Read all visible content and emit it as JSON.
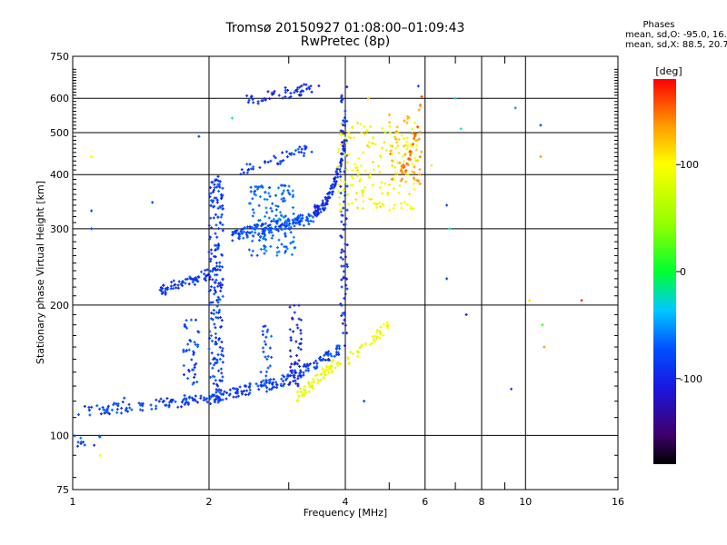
{
  "header": {
    "title_line1": "Tromsø 20150927 01:08:00–01:09:43",
    "title_line2": "RwPretec (8p)"
  },
  "phases": {
    "heading": "Phases",
    "line_o": "mean, sd,O:  -95.0, 16.4",
    "line_x": "mean, sd,X:  88.5, 20.7"
  },
  "colorbar": {
    "unit_label": "[deg]",
    "range": [
      -180,
      180
    ],
    "tick_values": [
      100,
      0,
      -100
    ],
    "tick_labels": [
      "100",
      "0",
      "-100"
    ]
  },
  "chart_data": {
    "type": "scatter",
    "title": "Tromsø 20150927 01:08:00–01:09:43",
    "subtitle": "RwPretec (8p)",
    "xlabel": "Frequency [MHz]",
    "ylabel": "Stationary phase Virtual Height [km]",
    "xscale": "log",
    "yscale": "log",
    "xlim": [
      1,
      16
    ],
    "ylim": [
      75,
      750
    ],
    "x_ticks": [
      1,
      2,
      4,
      6,
      8,
      10,
      16
    ],
    "x_tick_labels": [
      "1",
      "2",
      "4",
      "6",
      "8",
      "10",
      "16"
    ],
    "x_minor_ticks": [
      3,
      5,
      7,
      9
    ],
    "y_ticks": [
      75,
      100,
      200,
      300,
      400,
      500,
      600,
      750
    ],
    "y_tick_labels": [
      "75",
      "100",
      "200",
      "300",
      "400",
      "500",
      "600",
      "750"
    ],
    "grid": true,
    "color_scale": "phase [deg], rainbow from -180 (black) through -100 (blue), 0 (green), 100 (yellow) to 180 (red)",
    "traces": [
      {
        "name": "",
        "phase": -100,
        "x_range": [
          1.0,
          2.05
        ],
        "h_range": [
          113,
          122
        ],
        "shape": "rising",
        "n": 110
      },
      {
        "name": "",
        "phase": -102,
        "x_range": [
          2.05,
          3.0
        ],
        "h_range": [
          122,
          135
        ],
        "shape": "rising",
        "n": 90
      },
      {
        "name": "",
        "phase": -100,
        "x_range": [
          3.0,
          3.95
        ],
        "h_range": [
          135,
          160
        ],
        "shape": "rising",
        "n": 70
      },
      {
        "name": "",
        "phase": -105,
        "x_range": [
          1.55,
          2.1
        ],
        "h_range": [
          215,
          240
        ],
        "shape": "rising",
        "n": 70
      },
      {
        "name": "",
        "phase": -95,
        "x_range": [
          2.25,
          3.4
        ],
        "h_range": [
          290,
          318
        ],
        "shape": "rising",
        "n": 160
      },
      {
        "name": "",
        "phase": -108,
        "x_range": [
          3.4,
          4.0
        ],
        "h_range": [
          330,
          480
        ],
        "shape": "steep",
        "n": 110
      },
      {
        "name": "",
        "phase": -100,
        "x_range": [
          2.35,
          3.4
        ],
        "h_range": [
          410,
          460
        ],
        "shape": "rising",
        "n": 45
      },
      {
        "name": "",
        "phase": -110,
        "x_range": [
          2.4,
          3.5
        ],
        "h_range": [
          590,
          640
        ],
        "shape": "rising",
        "n": 50
      },
      {
        "name": "",
        "phase": -85,
        "x_range": [
          2.45,
          3.1
        ],
        "h_range": [
          260,
          380
        ],
        "shape": "cloud",
        "n": 130
      },
      {
        "name": "",
        "phase": -100,
        "x_range": [
          2.0,
          2.15
        ],
        "h_range": [
          120,
          400
        ],
        "shape": "vertical",
        "n": 200
      },
      {
        "name": "",
        "phase": -110,
        "x_range": [
          3.9,
          4.05
        ],
        "h_range": [
          160,
          640
        ],
        "shape": "vertical",
        "n": 80
      },
      {
        "name": "",
        "phase": -115,
        "x_range": [
          3.0,
          3.2
        ],
        "h_range": [
          130,
          200
        ],
        "shape": "vertical",
        "n": 45
      },
      {
        "name": "",
        "phase": -98,
        "x_range": [
          1.75,
          1.9
        ],
        "h_range": [
          130,
          185
        ],
        "shape": "vertical",
        "n": 40
      },
      {
        "name": "",
        "phase": -95,
        "x_range": [
          2.6,
          2.75
        ],
        "h_range": [
          125,
          180
        ],
        "shape": "vertical",
        "n": 30
      },
      {
        "name": "",
        "phase": 92,
        "x_range": [
          3.1,
          3.9
        ],
        "h_range": [
          122,
          150
        ],
        "shape": "rising",
        "n": 70
      },
      {
        "name": "",
        "phase": 95,
        "x_range": [
          4.05,
          5.0
        ],
        "h_range": [
          150,
          180
        ],
        "shape": "rising",
        "n": 40
      },
      {
        "name": "",
        "phase": 100,
        "x_range": [
          3.85,
          5.8
        ],
        "h_range": [
          330,
          530
        ],
        "shape": "cloud",
        "n": 170
      },
      {
        "name": "",
        "phase": 130,
        "x_range": [
          5.0,
          5.9
        ],
        "h_range": [
          380,
          560
        ],
        "shape": "cloud",
        "n": 50
      },
      {
        "name": "",
        "phase": 150,
        "x_range": [
          5.3,
          5.9
        ],
        "h_range": [
          410,
          620
        ],
        "shape": "steep",
        "n": 30
      },
      {
        "name": "",
        "phase": -98,
        "x_range": [
          1.0,
          1.15
        ],
        "h_range": [
          93,
          100
        ],
        "shape": "cloud",
        "n": 12
      }
    ],
    "scattered_points": [
      {
        "x": 1.1,
        "y": 330,
        "phase": -100
      },
      {
        "x": 1.1,
        "y": 300,
        "phase": -100
      },
      {
        "x": 1.1,
        "y": 440,
        "phase": 100
      },
      {
        "x": 1.5,
        "y": 345,
        "phase": -100
      },
      {
        "x": 1.9,
        "y": 490,
        "phase": -100
      },
      {
        "x": 2.25,
        "y": 540,
        "phase": -20
      },
      {
        "x": 6.7,
        "y": 230,
        "phase": -100
      },
      {
        "x": 6.7,
        "y": 340,
        "phase": -100
      },
      {
        "x": 6.8,
        "y": 300,
        "phase": -20
      },
      {
        "x": 7.2,
        "y": 510,
        "phase": -20
      },
      {
        "x": 7.4,
        "y": 190,
        "phase": -120
      },
      {
        "x": 9.5,
        "y": 570,
        "phase": -70
      },
      {
        "x": 9.3,
        "y": 128,
        "phase": -100
      },
      {
        "x": 10.2,
        "y": 205,
        "phase": 110
      },
      {
        "x": 10.8,
        "y": 440,
        "phase": 140
      },
      {
        "x": 10.9,
        "y": 180,
        "phase": 20
      },
      {
        "x": 11.0,
        "y": 160,
        "phase": 140
      },
      {
        "x": 10.8,
        "y": 520,
        "phase": -100
      },
      {
        "x": 13.3,
        "y": 205,
        "phase": 170
      },
      {
        "x": 7.0,
        "y": 600,
        "phase": -30
      },
      {
        "x": 1.3,
        "y": 122,
        "phase": -100
      },
      {
        "x": 1.15,
        "y": 90,
        "phase": 100
      },
      {
        "x": 4.4,
        "y": 120,
        "phase": -100
      },
      {
        "x": 4.5,
        "y": 600,
        "phase": 120
      },
      {
        "x": 5.8,
        "y": 640,
        "phase": -100
      },
      {
        "x": 6.2,
        "y": 420,
        "phase": 110
      }
    ]
  }
}
